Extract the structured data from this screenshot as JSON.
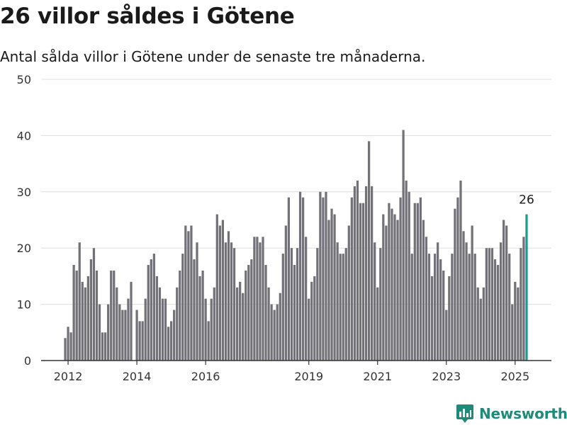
{
  "header": {
    "title": "26 villor såldes i Götene",
    "subtitle": "Antal sålda villor i Götene under de senaste tre månaderna."
  },
  "brand": {
    "name": "Newsworthy",
    "logo_icon": "newsworthy-logo-icon",
    "color": "#1f8a78"
  },
  "colors": {
    "bar": "#717177",
    "highlight": "#1a9a90",
    "grid": "#dddddd",
    "axis": "#333333"
  },
  "chart_data": {
    "type": "bar",
    "title": "26 villor såldes i Götene",
    "subtitle": "Antal sålda villor i Götene under de senaste tre månaderna.",
    "ylim": [
      0,
      50
    ],
    "yticks": [
      0,
      10,
      20,
      30,
      40,
      50
    ],
    "xtick_labels": [
      "2012",
      "2014",
      "2016",
      "2019",
      "2021",
      "2023",
      "2025"
    ],
    "xtick_positions": [
      "2012-01",
      "2014-01",
      "2016-01",
      "2019-01",
      "2021-01",
      "2023-01",
      "2025-01"
    ],
    "grid": true,
    "x_start": "2011-12",
    "x_end": "2025-05",
    "values": [
      4,
      6,
      5,
      17,
      16,
      21,
      14,
      13,
      15,
      18,
      20,
      16,
      10,
      5,
      5,
      10,
      16,
      16,
      13,
      10,
      9,
      9,
      11,
      14,
      0,
      9,
      7,
      7,
      11,
      17,
      18,
      19,
      15,
      13,
      11,
      11,
      6,
      7,
      9,
      13,
      16,
      19,
      24,
      23,
      24,
      18,
      21,
      15,
      16,
      11,
      7,
      11,
      13,
      26,
      24,
      25,
      21,
      23,
      21,
      20,
      13,
      14,
      12,
      16,
      17,
      18,
      22,
      22,
      21,
      22,
      17,
      13,
      10,
      9,
      10,
      12,
      19,
      24,
      29,
      20,
      17,
      20,
      30,
      29,
      22,
      11,
      14,
      15,
      20,
      30,
      29,
      30,
      25,
      27,
      26,
      21,
      19,
      19,
      20,
      24,
      29,
      31,
      32,
      28,
      28,
      31,
      39,
      31,
      21,
      13,
      20,
      26,
      24,
      28,
      27,
      26,
      25,
      29,
      41,
      32,
      30,
      19,
      28,
      28,
      29,
      25,
      22,
      19,
      15,
      19,
      21,
      18,
      16,
      9,
      15,
      19,
      27,
      29,
      32,
      23,
      21,
      19,
      24,
      19,
      13,
      11,
      13,
      20,
      20,
      20,
      18,
      17,
      21,
      25,
      24,
      19,
      10,
      14,
      13,
      20,
      22,
      26
    ],
    "highlight_last": true,
    "annotation": "26"
  }
}
